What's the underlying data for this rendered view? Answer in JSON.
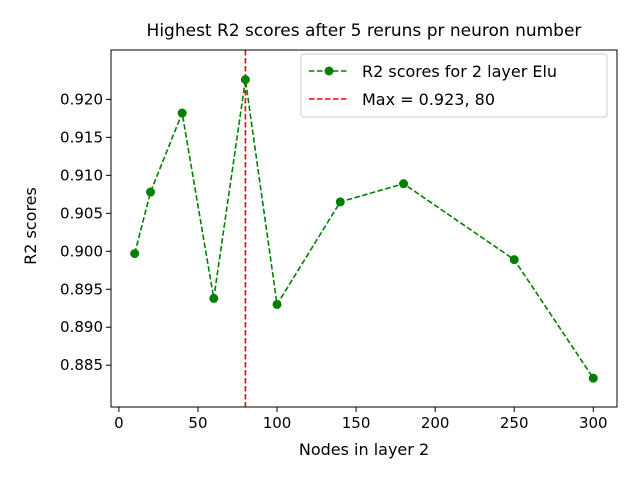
{
  "chart_data": {
    "type": "line",
    "title": "Highest R2 scores after 5 reruns pr neuron number",
    "xlabel": "Nodes in layer 2",
    "ylabel": "R2 scores",
    "xlim": [
      -5,
      315
    ],
    "ylim": [
      0.8795,
      0.9265
    ],
    "xticks": [
      0,
      50,
      100,
      150,
      200,
      250,
      300
    ],
    "xtick_labels": [
      "0",
      "50",
      "100",
      "150",
      "200",
      "250",
      "300"
    ],
    "yticks": [
      0.885,
      0.89,
      0.895,
      0.9,
      0.905,
      0.91,
      0.915,
      0.92
    ],
    "ytick_labels": [
      "0.885",
      "0.890",
      "0.895",
      "0.900",
      "0.905",
      "0.910",
      "0.915",
      "0.920"
    ],
    "grid": false,
    "legend_position": "top-right",
    "series": [
      {
        "name": "R2 scores for 2 layer Elu",
        "color": "#008000",
        "style": "dashed-line-with-circle-markers",
        "x": [
          10,
          20,
          40,
          60,
          80,
          100,
          140,
          180,
          250,
          300
        ],
        "y": [
          0.8997,
          0.9078,
          0.9182,
          0.8938,
          0.9226,
          0.893,
          0.9065,
          0.9089,
          0.8989,
          0.8833
        ]
      }
    ],
    "reference_lines": [
      {
        "name": "Max = 0.923, 80",
        "orientation": "vertical",
        "x": 80,
        "color": "#ff0000",
        "style": "dashed"
      }
    ]
  }
}
